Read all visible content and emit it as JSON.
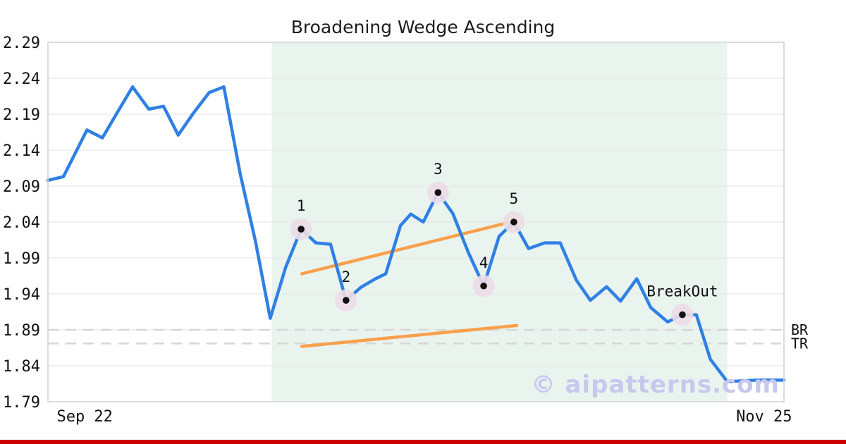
{
  "chart_data": {
    "type": "line",
    "title": "Broadening Wedge Ascending",
    "watermark": "© aipatterns.com",
    "ylim": [
      1.79,
      2.29
    ],
    "y_ticks": [
      2.29,
      2.24,
      2.19,
      2.14,
      2.09,
      2.04,
      1.99,
      1.94,
      1.89,
      1.84,
      1.79
    ],
    "x_ticks": [
      {
        "label": "Sep 22",
        "x": 0.05
      },
      {
        "label": "Nov 25",
        "x": 0.973
      }
    ],
    "series": {
      "name": "price",
      "points": [
        {
          "x": 0.0,
          "y": 2.098
        },
        {
          "x": 0.021,
          "y": 2.103
        },
        {
          "x": 0.053,
          "y": 2.168
        },
        {
          "x": 0.074,
          "y": 2.157
        },
        {
          "x": 0.094,
          "y": 2.192
        },
        {
          "x": 0.115,
          "y": 2.228
        },
        {
          "x": 0.137,
          "y": 2.197
        },
        {
          "x": 0.157,
          "y": 2.201
        },
        {
          "x": 0.177,
          "y": 2.161
        },
        {
          "x": 0.198,
          "y": 2.192
        },
        {
          "x": 0.219,
          "y": 2.22
        },
        {
          "x": 0.239,
          "y": 2.228
        },
        {
          "x": 0.261,
          "y": 2.108
        },
        {
          "x": 0.282,
          "y": 2.013
        },
        {
          "x": 0.302,
          "y": 1.906
        },
        {
          "x": 0.323,
          "y": 1.977
        },
        {
          "x": 0.344,
          "y": 2.03
        },
        {
          "x": 0.364,
          "y": 2.011
        },
        {
          "x": 0.384,
          "y": 2.009
        },
        {
          "x": 0.405,
          "y": 1.931
        },
        {
          "x": 0.425,
          "y": 1.949
        },
        {
          "x": 0.445,
          "y": 1.961
        },
        {
          "x": 0.459,
          "y": 1.968
        },
        {
          "x": 0.479,
          "y": 2.035
        },
        {
          "x": 0.493,
          "y": 2.051
        },
        {
          "x": 0.51,
          "y": 2.04
        },
        {
          "x": 0.53,
          "y": 2.081
        },
        {
          "x": 0.55,
          "y": 2.052
        },
        {
          "x": 0.571,
          "y": 1.998
        },
        {
          "x": 0.592,
          "y": 1.951
        },
        {
          "x": 0.613,
          "y": 2.02
        },
        {
          "x": 0.633,
          "y": 2.04
        },
        {
          "x": 0.653,
          "y": 2.003
        },
        {
          "x": 0.675,
          "y": 2.011
        },
        {
          "x": 0.696,
          "y": 2.011
        },
        {
          "x": 0.718,
          "y": 1.959
        },
        {
          "x": 0.737,
          "y": 1.931
        },
        {
          "x": 0.759,
          "y": 1.95
        },
        {
          "x": 0.778,
          "y": 1.93
        },
        {
          "x": 0.8,
          "y": 1.961
        },
        {
          "x": 0.819,
          "y": 1.921
        },
        {
          "x": 0.842,
          "y": 1.901
        },
        {
          "x": 0.862,
          "y": 1.911
        },
        {
          "x": 0.881,
          "y": 1.911
        },
        {
          "x": 0.9,
          "y": 1.849
        },
        {
          "x": 0.923,
          "y": 1.818
        },
        {
          "x": 0.962,
          "y": 1.82
        },
        {
          "x": 1.0,
          "y": 1.82
        }
      ]
    },
    "pattern_points": [
      {
        "label": "1",
        "x": 0.344,
        "y": 2.03
      },
      {
        "label": "2",
        "x": 0.405,
        "y": 1.931
      },
      {
        "label": "3",
        "x": 0.53,
        "y": 2.081
      },
      {
        "label": "4",
        "x": 0.592,
        "y": 1.951
      },
      {
        "label": "5",
        "x": 0.633,
        "y": 2.04
      },
      {
        "label": "BreakOut",
        "x": 0.862,
        "y": 1.911
      }
    ],
    "trendlines": [
      {
        "name": "upper",
        "x1": 0.345,
        "y1": 1.968,
        "x2": 0.633,
        "y2": 2.041
      },
      {
        "name": "lower",
        "x1": 0.345,
        "y1": 1.867,
        "x2": 0.637,
        "y2": 1.896
      }
    ],
    "hlines": [
      {
        "label": "BR",
        "y": 1.89
      },
      {
        "label": "TR",
        "y": 1.871
      }
    ],
    "pattern_region": {
      "x0": 0.304,
      "x1": 0.923
    },
    "legend": null,
    "grid": true,
    "colors": {
      "line": "#2f80e4",
      "trendline": "#f9a04c",
      "pattern_region": "#e9f4ef",
      "grid": "#e7e7e7",
      "level_dash": "#d6d6d6",
      "plot_border": "#d4d4d4",
      "marker_halo": "#eddde5",
      "marker_dot": "#111111",
      "watermark": "#c7c8ee",
      "footer_bar": "#cc0000",
      "text": "#111111"
    }
  }
}
